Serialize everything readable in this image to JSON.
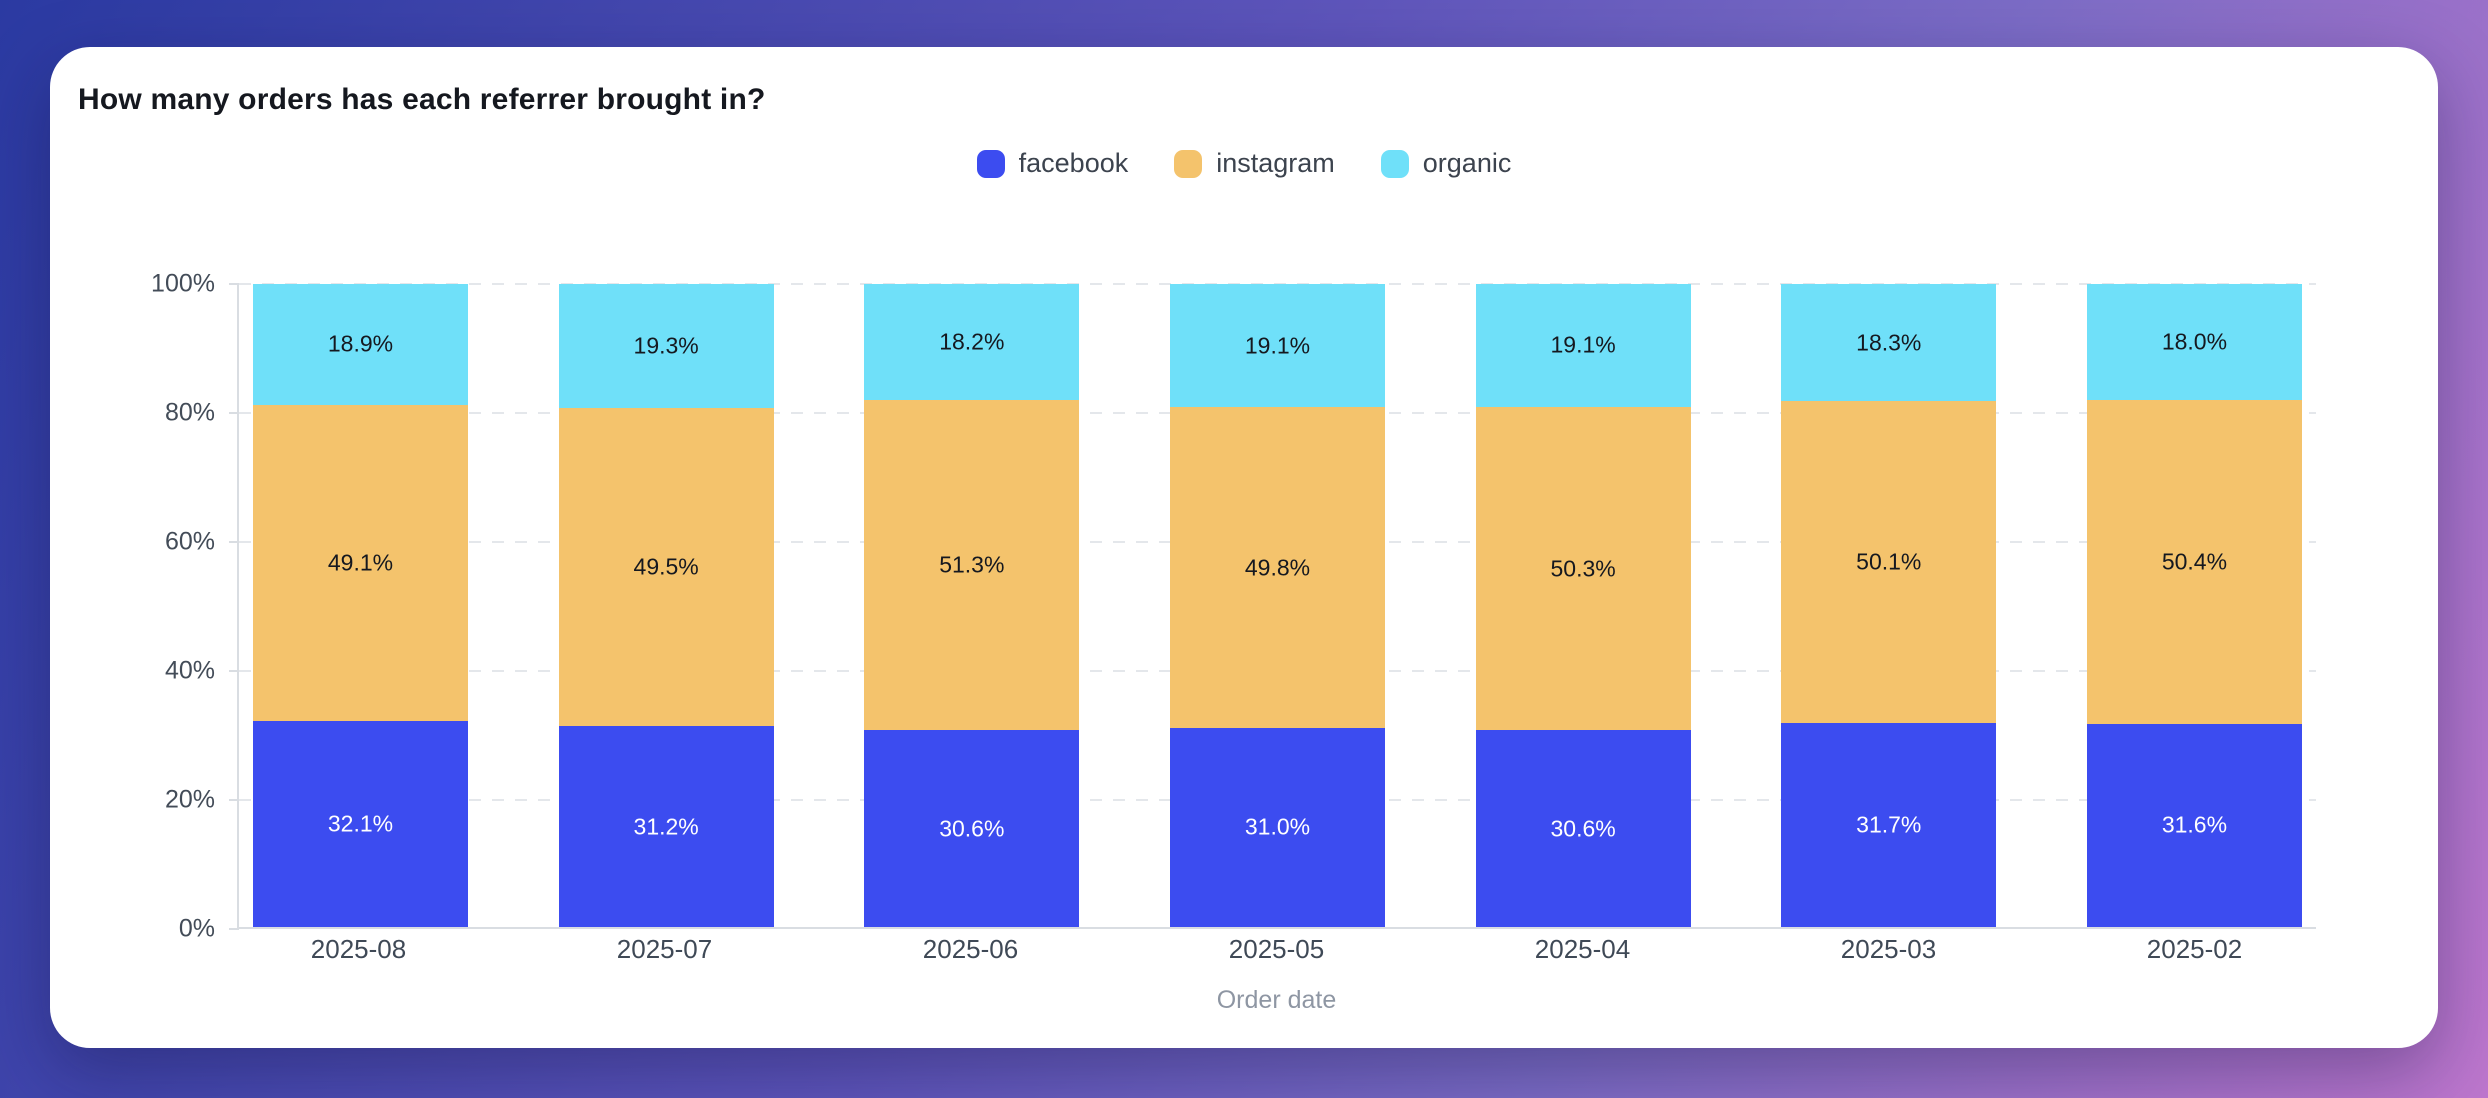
{
  "card": {
    "title": "How many orders has each referrer brought in?"
  },
  "chart_data": {
    "type": "bar",
    "variant": "stacked-percent",
    "title": "How many orders has each referrer brought in?",
    "xlabel": "Order date",
    "ylabel": "",
    "ylim": [
      0,
      100
    ],
    "y_ticks": [
      "0%",
      "20%",
      "40%",
      "60%",
      "80%",
      "100%"
    ],
    "grid": "horizontal-dashed",
    "legend_position": "top-center",
    "categories": [
      "2025-08",
      "2025-07",
      "2025-06",
      "2025-05",
      "2025-04",
      "2025-03",
      "2025-02"
    ],
    "series": [
      {
        "name": "facebook",
        "color": "#3c4cf0",
        "label_color": "#ffffff",
        "values": [
          32.1,
          31.2,
          30.6,
          31.0,
          30.6,
          31.7,
          31.6
        ],
        "labels": [
          "32.1%",
          "31.2%",
          "30.6%",
          "31.0%",
          "30.6%",
          "31.7%",
          "31.6%"
        ]
      },
      {
        "name": "instagram",
        "color": "#f4c36c",
        "label_color": "#15181f",
        "values": [
          49.1,
          49.5,
          51.3,
          49.8,
          50.3,
          50.1,
          50.4
        ],
        "labels": [
          "49.1%",
          "49.5%",
          "51.3%",
          "49.8%",
          "50.3%",
          "50.1%",
          "50.4%"
        ]
      },
      {
        "name": "organic",
        "color": "#6fe0f9",
        "label_color": "#15181f",
        "values": [
          18.9,
          19.3,
          18.2,
          19.1,
          19.1,
          18.3,
          18.0
        ],
        "labels": [
          "18.9%",
          "19.3%",
          "18.2%",
          "19.1%",
          "19.1%",
          "18.3%",
          "18.0%"
        ]
      }
    ]
  }
}
